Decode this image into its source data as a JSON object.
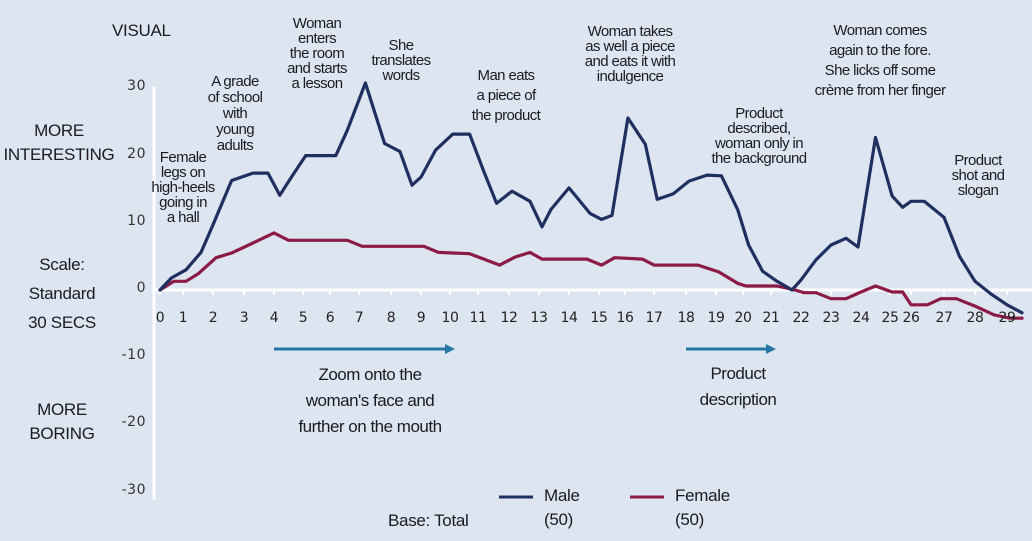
{
  "header": {
    "title": "VISUAL"
  },
  "side_labels": {
    "more_interesting": [
      "MORE",
      "INTERESTING"
    ],
    "scale": [
      "Scale:",
      "Standard",
      "30 SECS"
    ],
    "more_boring": [
      "MORE",
      "BORING"
    ]
  },
  "colors": {
    "background": "#dde6f0",
    "male": "#1f2f5f",
    "female": "#8b1a45",
    "arrow": "#2576a2",
    "axis": "#ffffff"
  },
  "phases": [
    {
      "text": "Zoom onto the\nwoman's face and\nfurther on the mouth",
      "from": 4,
      "to": 10
    },
    {
      "text": "Product\ndescription",
      "from": 18,
      "to": 21
    }
  ],
  "legend": {
    "base": "Base: Total",
    "items": [
      {
        "name": "Male",
        "count": "(50)"
      },
      {
        "name": "Female",
        "count": "(50)"
      }
    ]
  },
  "chart_data": {
    "type": "line",
    "title": "VISUAL",
    "xlabel": "",
    "ylabel": "Scale: Standard 30 SECS",
    "xlim": [
      0,
      29.7
    ],
    "ylim": [
      -30,
      30
    ],
    "x_ticks": [
      "0",
      "1",
      "2",
      "3",
      "4",
      "5",
      "6",
      "7",
      "8",
      "9",
      "10",
      "11",
      "12",
      "13",
      "14",
      "15",
      "16",
      "17",
      "18",
      "19",
      "20",
      "21",
      "22",
      "23",
      "24",
      "25",
      "26",
      "27",
      "28",
      "29"
    ],
    "y_ticks": [
      "30",
      "20",
      "10",
      "0",
      "-10",
      "-20",
      "-30"
    ],
    "y_tick_values": [
      30,
      20,
      10,
      0,
      -10,
      -20,
      -30
    ],
    "grid": false,
    "legend_position": "bottom",
    "series": [
      {
        "name": "Male",
        "x": [
          0,
          0.5,
          1.1,
          1.6,
          2.0,
          2.6,
          3.3,
          3.8,
          4.2,
          4.6,
          5.1,
          6.2,
          6.6,
          7.2,
          7.8,
          8.3,
          8.7,
          9.0,
          9.5,
          10.1,
          10.7,
          11.2,
          11.6,
          12.1,
          12.7,
          13.1,
          13.4,
          14.0,
          14.7,
          15.1,
          15.5,
          16.1,
          16.7,
          17.1,
          17.6,
          18.1,
          18.7,
          19.2,
          19.8,
          20.2,
          20.7,
          21.2,
          21.7,
          22.0,
          22.5,
          23.0,
          23.5,
          23.9,
          24.5,
          25.1,
          25.6,
          26.0,
          26.4,
          27.0,
          27.5,
          28.0,
          28.5,
          29.0,
          29.5
        ],
        "values": [
          0,
          1.8,
          3,
          5.6,
          9.7,
          16.3,
          17.4,
          17.4,
          14.1,
          16.8,
          20,
          20,
          23.8,
          30.8,
          21.8,
          20.6,
          15.6,
          16.8,
          20.8,
          23.2,
          23.2,
          17.5,
          12.9,
          14.7,
          13.2,
          9.4,
          12,
          15.2,
          11.4,
          10.5,
          11.1,
          25.6,
          21.7,
          13.5,
          14.3,
          16.2,
          17.1,
          17,
          12,
          6.7,
          2.8,
          1.3,
          0,
          1.5,
          4.5,
          6.7,
          7.7,
          6.4,
          22.7,
          14,
          12.3,
          13.2,
          13.2,
          10.8,
          5,
          1.3,
          -0.6,
          -2.2,
          -3.4
        ]
      },
      {
        "name": "Female",
        "x": [
          0,
          0.6,
          1.1,
          1.5,
          2.1,
          2.6,
          3.3,
          4.0,
          4.5,
          6.6,
          7.1,
          9.1,
          9.6,
          10.1,
          10.7,
          11.7,
          12.2,
          12.7,
          13.1,
          14.6,
          15.1,
          15.6,
          16.6,
          17.0,
          18.4,
          19.1,
          19.8,
          20.1,
          21.2,
          21.8,
          22.1,
          22.5,
          23.0,
          23.5,
          24.0,
          24.5,
          25.1,
          25.6,
          26.0,
          26.5,
          26.9,
          27.4,
          28.0,
          28.6,
          29.1,
          29.5
        ],
        "values": [
          0,
          1.3,
          1.3,
          2.4,
          4.8,
          5.5,
          7,
          8.5,
          7.4,
          7.4,
          6.5,
          6.5,
          5.6,
          5.5,
          5.4,
          3.7,
          4.9,
          5.6,
          4.6,
          4.6,
          3.7,
          4.8,
          4.6,
          3.7,
          3.7,
          2.7,
          1,
          0.6,
          0.6,
          0,
          -0.4,
          -0.4,
          -1.3,
          -1.3,
          -0.3,
          0.6,
          -0.3,
          -0.3,
          -2.2,
          -2.2,
          -1.3,
          -1.3,
          -2.4,
          -3.7,
          -4.2,
          -4.2
        ]
      }
    ],
    "annotations": [
      {
        "text": "Female\nlegs on\nhigh-heels\ngoing in\na hall",
        "at": 0.5
      },
      {
        "text": "A grade\nof school\nwith\nyoung\nadults",
        "at": 2.6
      },
      {
        "text": "Woman\nenters\nthe room\nand starts\na lesson",
        "at": 5.4
      },
      {
        "text": "She\ntranslates\nwords",
        "at": 8.0
      },
      {
        "text": "Man eats\na piece of\nthe product",
        "at": 11.5
      },
      {
        "text": "Woman takes\nas well a piece\nand eats it with\nindulgence",
        "at": 15.7
      },
      {
        "text": "Product\ndescribed,\nwoman only in\nthe background",
        "at": 19.9
      },
      {
        "text": "Woman comes\nagain to the fore.\nShe licks off some\ncrème from her finger",
        "at": 24.6
      },
      {
        "text": "Product\nshot and\nslogan",
        "at": 27.3
      }
    ]
  }
}
